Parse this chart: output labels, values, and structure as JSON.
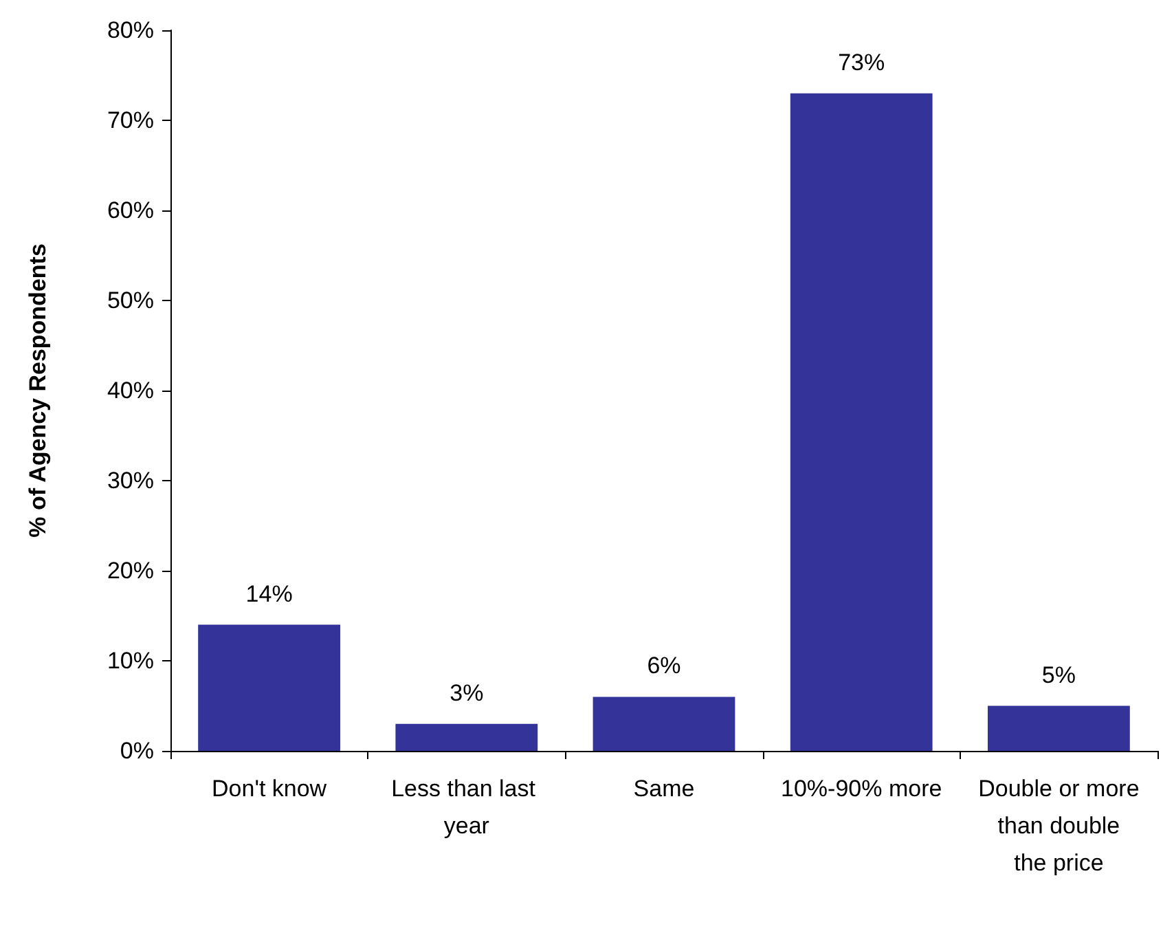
{
  "chart_data": {
    "type": "bar",
    "ylabel": "% of Agency Respondents",
    "categories": [
      "Don't know",
      "Less than last year",
      "Same",
      "10%-90% more",
      "Double or more than double the price"
    ],
    "values": [
      14,
      3,
      6,
      73,
      5
    ],
    "value_labels": [
      "14%",
      "3%",
      "6%",
      "73%",
      "5%"
    ],
    "color": "#333399",
    "ylim": [
      0,
      80
    ],
    "yticks": [
      {
        "value": 0,
        "label": "0%"
      },
      {
        "value": 10,
        "label": "10%"
      },
      {
        "value": 20,
        "label": "20%"
      },
      {
        "value": 30,
        "label": "30%"
      },
      {
        "value": 40,
        "label": "40%"
      },
      {
        "value": 50,
        "label": "50%"
      },
      {
        "value": 60,
        "label": "60%"
      },
      {
        "value": 70,
        "label": "70%"
      },
      {
        "value": 80,
        "label": "80%"
      }
    ],
    "grid": false
  }
}
